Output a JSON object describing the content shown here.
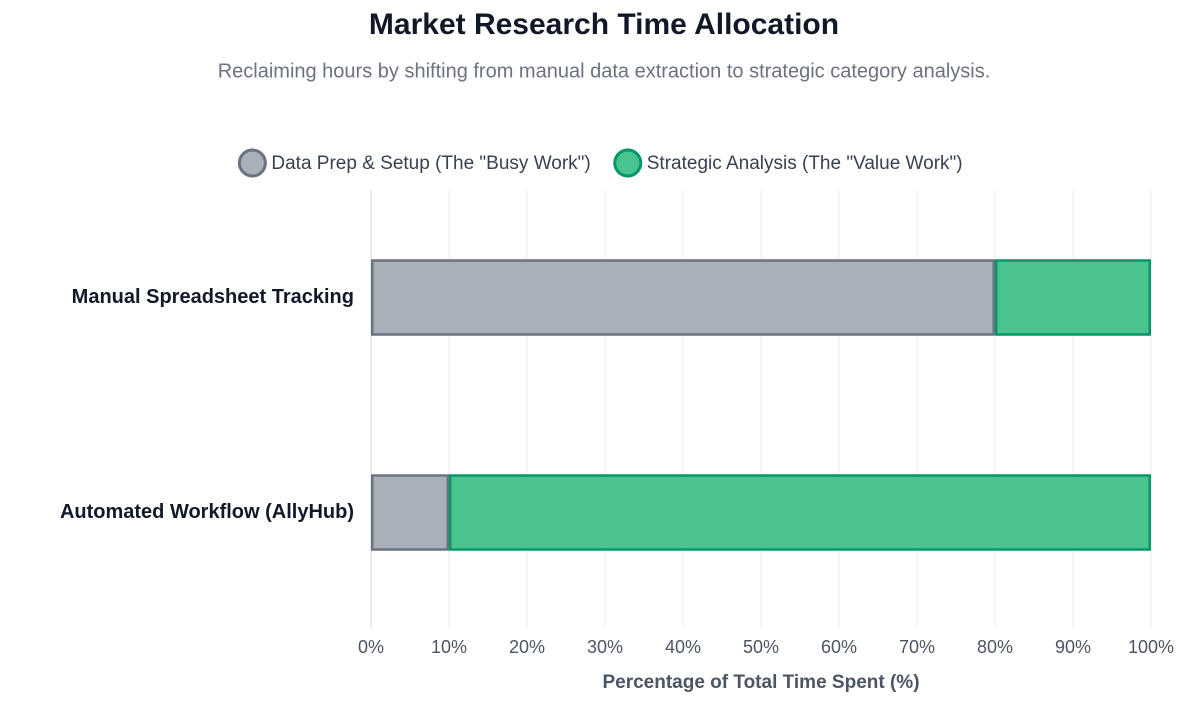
{
  "chart_data": {
    "type": "stacked-bar-horizontal",
    "title": "Market Research Time Allocation",
    "subtitle": "Reclaiming hours by shifting from manual data extraction to strategic category analysis.",
    "x_label": "Percentage of Total Time Spent (%)",
    "categories": [
      "Manual Spreadsheet Tracking",
      "Automated Workflow (AllyHub)"
    ],
    "series": [
      {
        "name": "Data Prep & Setup (The \"Busy Work\")",
        "color": "#a9b0ba",
        "border_color": "#6b7280",
        "values": [
          80,
          10
        ]
      },
      {
        "name": "Strategic Analysis (The \"Value Work\")",
        "color": "#4ac38f",
        "border_color": "#059669",
        "values": [
          20,
          90
        ]
      }
    ],
    "xlim": [
      0,
      100
    ],
    "xticks": [
      {
        "value": 0,
        "label": "0%"
      },
      {
        "value": 10,
        "label": "10%"
      },
      {
        "value": 20,
        "label": "20%"
      },
      {
        "value": 30,
        "label": "30%"
      },
      {
        "value": 40,
        "label": "40%"
      },
      {
        "value": 50,
        "label": "50%"
      },
      {
        "value": 60,
        "label": "60%"
      },
      {
        "value": 70,
        "label": "70%"
      },
      {
        "value": 80,
        "label": "80%"
      },
      {
        "value": 90,
        "label": "90%"
      },
      {
        "value": 100,
        "label": "100%"
      }
    ],
    "grid": true,
    "legend": "top"
  }
}
